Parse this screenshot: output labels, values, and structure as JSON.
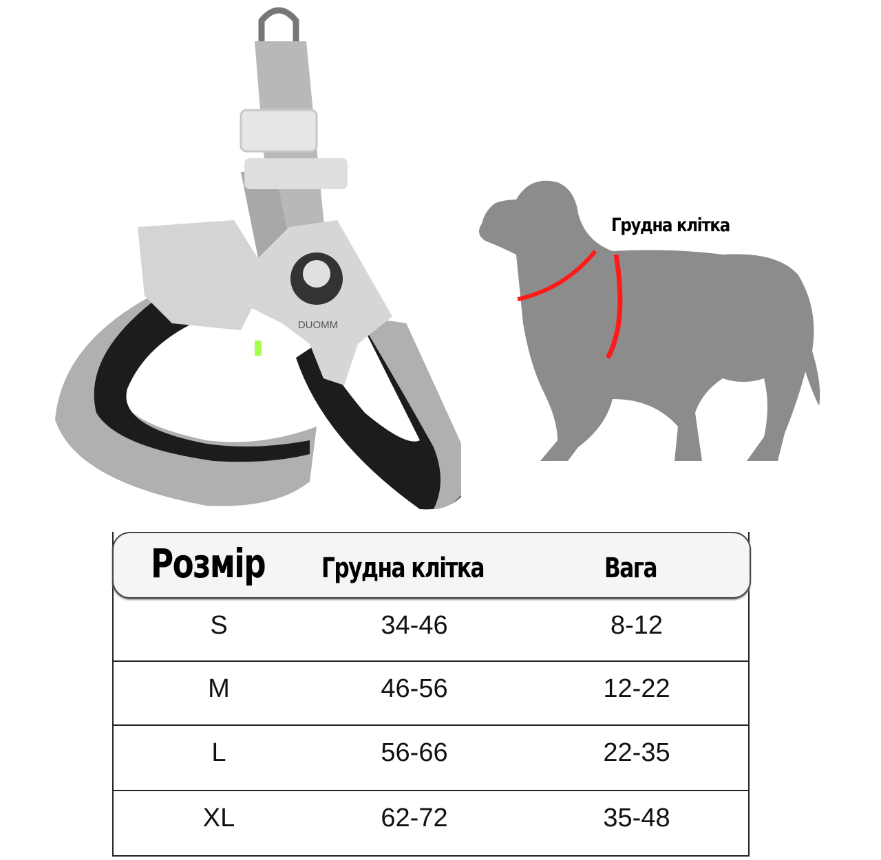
{
  "product": {
    "brand_logo_text": "DUOMM",
    "dog_label": "Грудна клітка",
    "colors": {
      "harness_gray": "#b5b5b5",
      "padding_black": "#1c1c1c",
      "dog_silhouette": "#8c8c8c",
      "chest_marker": "#ff1a1a",
      "header_bg": "#f5f5f5"
    }
  },
  "size_table": {
    "headers": [
      "Розмір",
      "Грудна клітка",
      "Вага"
    ],
    "rows": [
      [
        "S",
        "34-46",
        "8-12"
      ],
      [
        "M",
        "46-56",
        "12-22"
      ],
      [
        "L",
        "56-66",
        "22-35"
      ],
      [
        "XL",
        "62-72",
        "35-48"
      ]
    ]
  }
}
